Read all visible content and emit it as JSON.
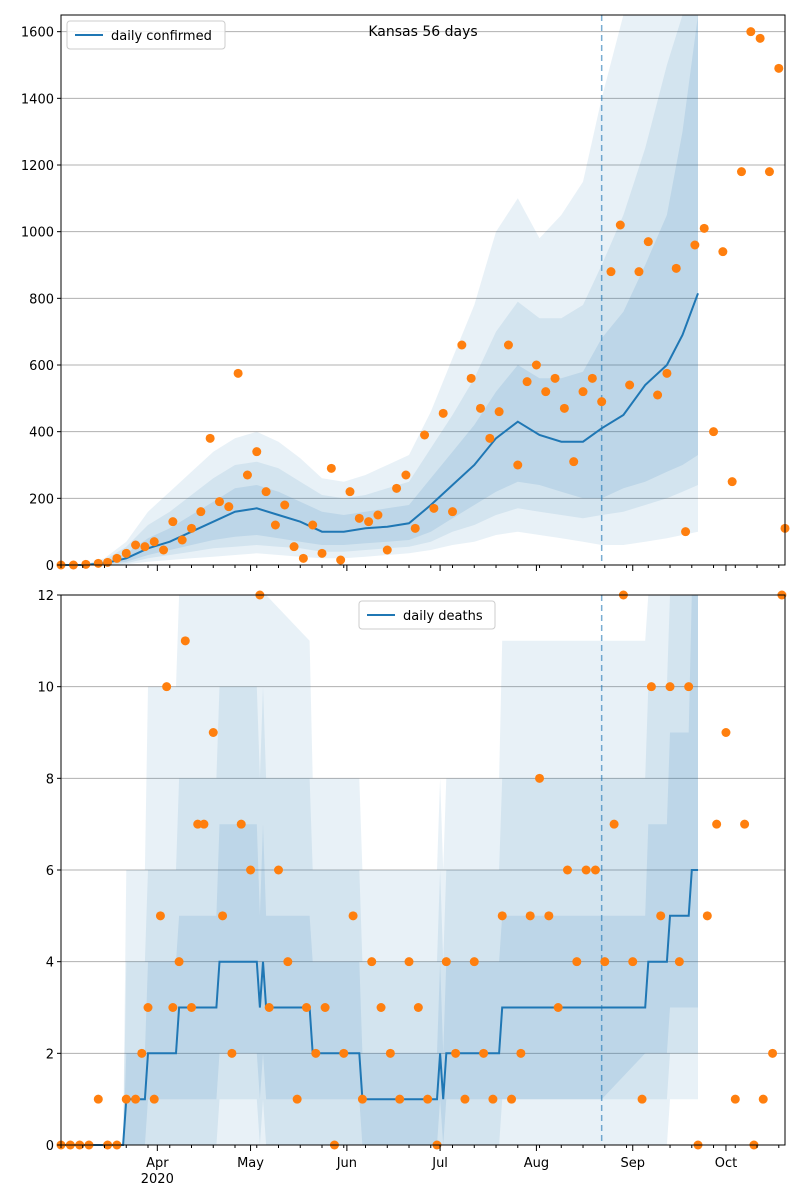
{
  "colors": {
    "line": "#1f77b4",
    "points": "#ff7f0e",
    "band": "#1f77b4",
    "grid": "#b0b0b0",
    "axis": "#000000"
  },
  "x_ticks": [
    "Apr",
    "May",
    "Jun",
    "Jul",
    "Aug",
    "Sep",
    "Oct"
  ],
  "x_year_label": "2020",
  "chart_data": [
    {
      "type": "line",
      "title": "Kansas 56 days",
      "legend": {
        "label": "daily confirmed",
        "position": "top-left"
      },
      "xlim": [
        "2020-03-01",
        "2020-10-20"
      ],
      "ylim": [
        0,
        1650
      ],
      "yticks": [
        0,
        200,
        400,
        600,
        800,
        1000,
        1200,
        1400,
        1600
      ],
      "grid": "y",
      "forecast_start": "2020-08-22",
      "model_end": "2020-09-22",
      "median_x": [
        "2020-03-01",
        "2020-03-08",
        "2020-03-15",
        "2020-03-22",
        "2020-03-29",
        "2020-04-05",
        "2020-04-12",
        "2020-04-19",
        "2020-04-26",
        "2020-05-03",
        "2020-05-10",
        "2020-05-17",
        "2020-05-24",
        "2020-05-31",
        "2020-06-07",
        "2020-06-14",
        "2020-06-21",
        "2020-06-28",
        "2020-07-05",
        "2020-07-12",
        "2020-07-19",
        "2020-07-26",
        "2020-08-02",
        "2020-08-09",
        "2020-08-16",
        "2020-08-22",
        "2020-08-29",
        "2020-09-05",
        "2020-09-12",
        "2020-09-17",
        "2020-09-22"
      ],
      "median_y": [
        0,
        0,
        5,
        20,
        50,
        70,
        100,
        130,
        160,
        170,
        150,
        130,
        100,
        100,
        110,
        115,
        125,
        180,
        240,
        300,
        380,
        430,
        390,
        370,
        370,
        410,
        450,
        540,
        600,
        690,
        815
      ],
      "band_inner_low": [
        0,
        0,
        2,
        10,
        30,
        45,
        60,
        75,
        85,
        90,
        80,
        70,
        60,
        60,
        65,
        70,
        75,
        100,
        140,
        180,
        220,
        250,
        240,
        220,
        200,
        200,
        230,
        250,
        280,
        300,
        330
      ],
      "band_inner_high": [
        0,
        0,
        10,
        35,
        80,
        110,
        150,
        190,
        230,
        240,
        220,
        190,
        160,
        150,
        160,
        170,
        180,
        260,
        340,
        420,
        520,
        600,
        560,
        560,
        580,
        680,
        760,
        900,
        1050,
        1300,
        1650
      ],
      "band_mid_low": [
        0,
        0,
        1,
        5,
        20,
        30,
        40,
        50,
        55,
        60,
        55,
        50,
        40,
        40,
        45,
        50,
        55,
        70,
        100,
        120,
        150,
        170,
        160,
        150,
        140,
        150,
        160,
        180,
        200,
        220,
        240
      ],
      "band_mid_high": [
        0,
        0,
        15,
        55,
        120,
        160,
        210,
        260,
        300,
        310,
        290,
        250,
        210,
        200,
        210,
        230,
        250,
        350,
        450,
        560,
        700,
        790,
        740,
        740,
        780,
        900,
        1050,
        1250,
        1500,
        1650,
        1650
      ],
      "band_outer_low": [
        0,
        0,
        0,
        2,
        10,
        15,
        20,
        25,
        30,
        35,
        30,
        25,
        20,
        20,
        25,
        30,
        35,
        45,
        60,
        70,
        90,
        100,
        90,
        80,
        70,
        60,
        60,
        70,
        80,
        90,
        100
      ],
      "band_outer_high": [
        0,
        0,
        20,
        70,
        160,
        220,
        280,
        340,
        380,
        400,
        370,
        320,
        260,
        250,
        270,
        300,
        330,
        460,
        620,
        780,
        1000,
        1100,
        980,
        1050,
        1150,
        1400,
        1650,
        1650,
        1650,
        1650,
        1650
      ],
      "observed_x": [
        "2020-03-01",
        "2020-03-05",
        "2020-03-09",
        "2020-03-13",
        "2020-03-16",
        "2020-03-19",
        "2020-03-22",
        "2020-03-25",
        "2020-03-28",
        "2020-03-31",
        "2020-04-03",
        "2020-04-06",
        "2020-04-09",
        "2020-04-12",
        "2020-04-15",
        "2020-04-18",
        "2020-04-21",
        "2020-04-24",
        "2020-04-27",
        "2020-04-30",
        "2020-05-03",
        "2020-05-06",
        "2020-05-09",
        "2020-05-12",
        "2020-05-15",
        "2020-05-18",
        "2020-05-21",
        "2020-05-24",
        "2020-05-27",
        "2020-05-30",
        "2020-06-02",
        "2020-06-05",
        "2020-06-08",
        "2020-06-11",
        "2020-06-14",
        "2020-06-17",
        "2020-06-20",
        "2020-06-23",
        "2020-06-26",
        "2020-06-29",
        "2020-07-02",
        "2020-07-05",
        "2020-07-08",
        "2020-07-11",
        "2020-07-14",
        "2020-07-17",
        "2020-07-20",
        "2020-07-23",
        "2020-07-26",
        "2020-07-29",
        "2020-08-01",
        "2020-08-04",
        "2020-08-07",
        "2020-08-10",
        "2020-08-13",
        "2020-08-16",
        "2020-08-19",
        "2020-08-22",
        "2020-08-25",
        "2020-08-28",
        "2020-08-31",
        "2020-09-03",
        "2020-09-06",
        "2020-09-09",
        "2020-09-12",
        "2020-09-15",
        "2020-09-18",
        "2020-09-21",
        "2020-09-24",
        "2020-09-27",
        "2020-09-30",
        "2020-10-03",
        "2020-10-06",
        "2020-10-09",
        "2020-10-12",
        "2020-10-15",
        "2020-10-18",
        "2020-10-20"
      ],
      "observed_y": [
        0,
        0,
        2,
        5,
        8,
        20,
        35,
        60,
        55,
        70,
        45,
        130,
        75,
        110,
        160,
        380,
        190,
        175,
        575,
        270,
        340,
        220,
        120,
        180,
        55,
        20,
        120,
        35,
        290,
        15,
        220,
        140,
        130,
        150,
        45,
        230,
        270,
        110,
        390,
        170,
        455,
        160,
        660,
        560,
        470,
        380,
        460,
        660,
        300,
        550,
        600,
        520,
        560,
        470,
        310,
        520,
        560,
        490,
        880,
        1020,
        540,
        880,
        970,
        510,
        575,
        890,
        100,
        960,
        1010,
        400,
        940,
        250,
        1180,
        1600,
        1580,
        1180,
        1490,
        110
      ]
    },
    {
      "type": "line",
      "title": "",
      "legend": {
        "label": "daily deaths",
        "position": "top-center"
      },
      "xlim": [
        "2020-03-01",
        "2020-10-20"
      ],
      "ylim": [
        0,
        12
      ],
      "yticks": [
        0,
        2,
        4,
        6,
        8,
        10,
        12
      ],
      "grid": "y",
      "forecast_start": "2020-08-22",
      "model_end": "2020-09-22",
      "median_x": [
        "2020-03-01",
        "2020-03-21",
        "2020-03-22",
        "2020-03-28",
        "2020-03-29",
        "2020-04-07",
        "2020-04-08",
        "2020-04-20",
        "2020-04-21",
        "2020-05-03",
        "2020-05-04",
        "2020-05-05",
        "2020-05-06",
        "2020-05-20",
        "2020-05-21",
        "2020-06-05",
        "2020-06-06",
        "2020-06-30",
        "2020-07-01",
        "2020-07-02",
        "2020-07-03",
        "2020-07-20",
        "2020-07-21",
        "2020-08-22",
        "2020-09-05",
        "2020-09-06",
        "2020-09-12",
        "2020-09-13",
        "2020-09-19",
        "2020-09-20",
        "2020-09-22"
      ],
      "median_y": [
        0,
        0,
        1,
        1,
        2,
        2,
        3,
        3,
        4,
        4,
        3,
        4,
        3,
        3,
        2,
        2,
        1,
        1,
        2,
        1,
        2,
        2,
        3,
        3,
        3,
        4,
        4,
        5,
        5,
        6,
        6
      ],
      "band_inner_low": [
        0,
        0,
        0,
        0,
        1,
        1,
        1,
        1,
        2,
        2,
        1,
        2,
        1,
        1,
        1,
        1,
        0,
        0,
        1,
        0,
        1,
        1,
        1,
        1,
        2,
        2,
        2,
        3,
        3,
        3,
        3
      ],
      "band_inner_high": [
        0,
        0,
        2,
        2,
        4,
        4,
        5,
        5,
        7,
        7,
        5,
        7,
        5,
        5,
        4,
        4,
        2,
        2,
        4,
        2,
        4,
        4,
        5,
        5,
        5,
        7,
        7,
        9,
        9,
        12,
        12
      ],
      "band_mid_low": [
        0,
        0,
        0,
        0,
        0,
        0,
        0,
        0,
        1,
        1,
        0,
        1,
        0,
        0,
        0,
        0,
        0,
        0,
        0,
        0,
        0,
        0,
        1,
        1,
        1,
        1,
        1,
        2,
        2,
        2,
        2
      ],
      "band_mid_high": [
        0,
        0,
        4,
        4,
        6,
        6,
        8,
        8,
        10,
        10,
        8,
        10,
        8,
        8,
        6,
        6,
        4,
        4,
        6,
        4,
        6,
        6,
        8,
        8,
        8,
        10,
        10,
        12,
        12,
        12,
        12
      ],
      "band_outer_low": [
        0,
        0,
        0,
        0,
        0,
        0,
        0,
        0,
        0,
        0,
        0,
        0,
        0,
        0,
        0,
        0,
        0,
        0,
        0,
        0,
        0,
        0,
        0,
        0,
        0,
        0,
        0,
        1,
        1,
        1,
        1
      ],
      "band_outer_high": [
        0,
        0,
        6,
        6,
        10,
        10,
        12,
        12,
        12,
        12,
        12,
        12,
        12,
        11,
        8,
        8,
        6,
        6,
        8,
        6,
        8,
        8,
        11,
        11,
        11,
        12,
        12,
        12,
        12,
        12,
        12
      ],
      "observed_x": [
        "2020-03-01",
        "2020-03-04",
        "2020-03-07",
        "2020-03-10",
        "2020-03-13",
        "2020-03-16",
        "2020-03-19",
        "2020-03-22",
        "2020-03-25",
        "2020-03-27",
        "2020-03-29",
        "2020-03-31",
        "2020-04-02",
        "2020-04-04",
        "2020-04-06",
        "2020-04-08",
        "2020-04-10",
        "2020-04-12",
        "2020-04-14",
        "2020-04-16",
        "2020-04-19",
        "2020-04-22",
        "2020-04-25",
        "2020-04-28",
        "2020-05-01",
        "2020-05-04",
        "2020-05-07",
        "2020-05-10",
        "2020-05-13",
        "2020-05-16",
        "2020-05-19",
        "2020-05-22",
        "2020-05-25",
        "2020-05-28",
        "2020-05-31",
        "2020-06-03",
        "2020-06-06",
        "2020-06-09",
        "2020-06-12",
        "2020-06-15",
        "2020-06-18",
        "2020-06-21",
        "2020-06-24",
        "2020-06-27",
        "2020-06-30",
        "2020-07-03",
        "2020-07-06",
        "2020-07-09",
        "2020-07-12",
        "2020-07-15",
        "2020-07-18",
        "2020-07-21",
        "2020-07-24",
        "2020-07-27",
        "2020-07-30",
        "2020-08-02",
        "2020-08-05",
        "2020-08-08",
        "2020-08-11",
        "2020-08-14",
        "2020-08-17",
        "2020-08-20",
        "2020-08-23",
        "2020-08-26",
        "2020-08-29",
        "2020-09-01",
        "2020-09-04",
        "2020-09-07",
        "2020-09-10",
        "2020-09-13",
        "2020-09-16",
        "2020-09-19",
        "2020-09-22",
        "2020-09-25",
        "2020-09-28",
        "2020-10-01",
        "2020-10-04",
        "2020-10-07",
        "2020-10-10",
        "2020-10-13",
        "2020-10-16",
        "2020-10-19"
      ],
      "observed_y": [
        0,
        0,
        0,
        0,
        1,
        0,
        0,
        1,
        1,
        2,
        3,
        1,
        5,
        10,
        3,
        4,
        11,
        3,
        7,
        7,
        9,
        5,
        2,
        7,
        6,
        12,
        3,
        6,
        4,
        1,
        3,
        2,
        3,
        0,
        2,
        5,
        1,
        4,
        3,
        2,
        1,
        4,
        3,
        1,
        0,
        4,
        2,
        1,
        4,
        2,
        1,
        5,
        1,
        2,
        5,
        8,
        5,
        3,
        6,
        4,
        6,
        6,
        4,
        7,
        12,
        4,
        1,
        10,
        5,
        10,
        4,
        10,
        0,
        5,
        7,
        9,
        1,
        7,
        0,
        1,
        2,
        12
      ]
    }
  ]
}
